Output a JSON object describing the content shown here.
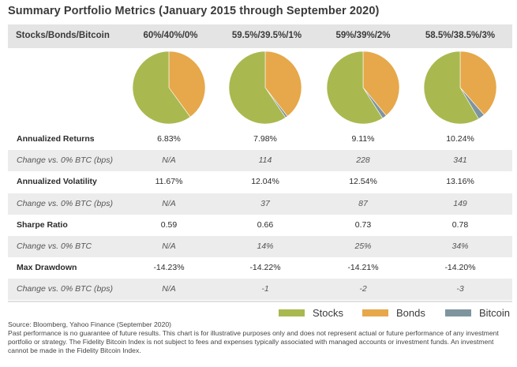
{
  "title": "Summary Portfolio Metrics (January 2015 through September 2020)",
  "header_label": "Stocks/Bonds/Bitcoin",
  "colors": {
    "stocks": "#a9b94f",
    "bonds": "#e6a84a",
    "bitcoin": "#7e959e"
  },
  "chart_data": {
    "type": "pie",
    "series_names": [
      "Stocks",
      "Bonds",
      "Bitcoin"
    ],
    "pies": [
      {
        "label": "60%/40%/0%",
        "values": [
          60,
          40,
          0
        ]
      },
      {
        "label": "59.5%/39.5%/1%",
        "values": [
          59.5,
          39.5,
          1
        ]
      },
      {
        "label": "59%/39%/2%",
        "values": [
          59,
          39,
          2
        ]
      },
      {
        "label": "58.5%/38.5%/3%",
        "values": [
          58.5,
          38.5,
          3
        ]
      }
    ],
    "legend_position": "bottom-right"
  },
  "table": {
    "rows": [
      {
        "label": "Annualized Returns",
        "italic": false,
        "values": [
          "6.83%",
          "7.98%",
          "9.11%",
          "10.24%"
        ]
      },
      {
        "label": "Change vs. 0% BTC (bps)",
        "italic": true,
        "values": [
          "N/A",
          "114",
          "228",
          "341"
        ]
      },
      {
        "label": "Annualized Volatility",
        "italic": false,
        "values": [
          "11.67%",
          "12.04%",
          "12.54%",
          "13.16%"
        ]
      },
      {
        "label": "Change vs. 0% BTC (bps)",
        "italic": true,
        "values": [
          "N/A",
          "37",
          "87",
          "149"
        ]
      },
      {
        "label": "Sharpe Ratio",
        "italic": false,
        "values": [
          "0.59",
          "0.66",
          "0.73",
          "0.78"
        ]
      },
      {
        "label": "Change vs. 0% BTC",
        "italic": true,
        "values": [
          "N/A",
          "14%",
          "25%",
          "34%"
        ]
      },
      {
        "label": "Max Drawdown",
        "italic": false,
        "values": [
          "-14.23%",
          "-14.22%",
          "-14.21%",
          "-14.20%"
        ]
      },
      {
        "label": "Change vs. 0% BTC (bps)",
        "italic": true,
        "values": [
          "N/A",
          "-1",
          "-2",
          "-3"
        ]
      }
    ]
  },
  "legend": {
    "stocks": "Stocks",
    "bonds": "Bonds",
    "bitcoin": "Bitcoin"
  },
  "footnote": {
    "source": "Source: Bloomberg, Yahoo Finance (September 2020)",
    "disclaimer": "Past performance is no guarantee of future results. This chart is for illustrative purposes only and does not represent actual or future performance of any investment portfolio or strategy. The Fidelity Bitcoin Index is not subject to fees and expenses typically associated with managed accounts or investment funds. An investment cannot be made in the Fidelity Bitcoin Index."
  }
}
